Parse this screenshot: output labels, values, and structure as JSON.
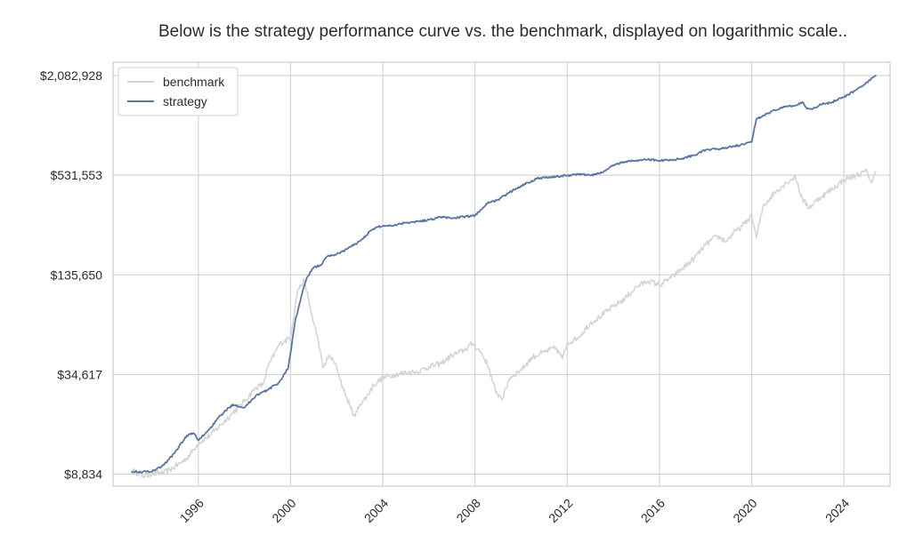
{
  "chart_data": {
    "type": "line",
    "title": "Below is the strategy performance curve vs. the benchmark, displayed on logarithmic scale..",
    "xlabel": "",
    "ylabel": "",
    "yscale": "log",
    "xlim": [
      1992.3,
      2026.0
    ],
    "ylim": [
      7500,
      2500000
    ],
    "grid": true,
    "legend_position": "top-left",
    "x_ticks": [
      1996,
      2000,
      2004,
      2008,
      2012,
      2016,
      2020,
      2024
    ],
    "x_tick_labels": [
      "1996",
      "2000",
      "2004",
      "2008",
      "2012",
      "2016",
      "2020",
      "2024"
    ],
    "y_ticks": [
      8834,
      34617,
      135650,
      531553,
      2082928
    ],
    "y_tick_labels": [
      "$8,834",
      "$34,617",
      "$135,650",
      "$531,553",
      "$2,082,928"
    ],
    "series": [
      {
        "name": "benchmark",
        "color": "#d3d3d3",
        "x": [
          1993.1,
          1993.3,
          1993.6,
          1994.0,
          1994.5,
          1995.0,
          1995.5,
          1996.0,
          1996.5,
          1997.0,
          1997.5,
          1998.0,
          1998.5,
          1998.8,
          1999.0,
          1999.5,
          2000.0,
          2000.3,
          2000.6,
          2000.9,
          2001.2,
          2001.4,
          2001.7,
          2002.0,
          2002.3,
          2002.6,
          2002.8,
          2003.0,
          2003.3,
          2003.6,
          2004.0,
          2004.5,
          2005.0,
          2005.5,
          2006.0,
          2006.5,
          2007.0,
          2007.5,
          2007.9,
          2008.3,
          2008.6,
          2008.9,
          2009.2,
          2009.5,
          2010.0,
          2010.5,
          2011.0,
          2011.5,
          2011.8,
          2012.0,
          2012.5,
          2013.0,
          2013.5,
          2014.0,
          2014.5,
          2015.0,
          2015.5,
          2016.0,
          2016.5,
          2017.0,
          2017.5,
          2018.0,
          2018.5,
          2018.9,
          2019.2,
          2019.6,
          2020.0,
          2020.2,
          2020.5,
          2021.0,
          2021.5,
          2021.9,
          2022.2,
          2022.5,
          2022.8,
          2023.0,
          2023.5,
          2024.0,
          2024.5,
          2025.0,
          2025.2,
          2025.4
        ],
        "values": [
          9200,
          9100,
          8600,
          8900,
          9000,
          9800,
          11000,
          13500,
          15000,
          17500,
          20500,
          24000,
          29000,
          30000,
          38000,
          52000,
          58000,
          110000,
          125000,
          80000,
          55000,
          38000,
          45000,
          38000,
          28000,
          22000,
          19500,
          23000,
          25500,
          30000,
          33000,
          34617,
          35500,
          36000,
          38500,
          40000,
          45000,
          48000,
          53000,
          46000,
          38000,
          27000,
          25000,
          33000,
          37000,
          44000,
          47000,
          50000,
          43000,
          53000,
          58000,
          70000,
          78000,
          88000,
          98000,
          115000,
          125000,
          118000,
          130000,
          148000,
          170000,
          205000,
          230000,
          215000,
          240000,
          265000,
          305000,
          225000,
          350000,
          420000,
          480000,
          520000,
          380000,
          340000,
          375000,
          395000,
          440000,
          500000,
          530000,
          560000,
          480000,
          560000
        ]
      },
      {
        "name": "strategy",
        "color": "#5875a4",
        "x": [
          1993.1,
          1993.5,
          1994.0,
          1994.5,
          1995.0,
          1995.5,
          1995.8,
          1996.0,
          1996.5,
          1997.0,
          1997.5,
          1998.0,
          1998.5,
          1999.0,
          1999.5,
          1999.9,
          2000.2,
          2000.5,
          2000.7,
          2001.0,
          2001.3,
          2001.6,
          2002.0,
          2002.5,
          2003.0,
          2003.5,
          2003.8,
          2004.0,
          2004.5,
          2005.0,
          2005.5,
          2006.0,
          2006.5,
          2007.0,
          2007.5,
          2008.0,
          2008.5,
          2009.0,
          2009.5,
          2010.0,
          2010.3,
          2010.7,
          2011.0,
          2011.5,
          2012.0,
          2012.5,
          2013.0,
          2013.5,
          2014.0,
          2014.5,
          2015.0,
          2015.5,
          2016.0,
          2016.5,
          2017.0,
          2017.5,
          2018.0,
          2018.5,
          2019.0,
          2019.5,
          2020.0,
          2020.2,
          2020.5,
          2020.8,
          2021.0,
          2021.5,
          2021.9,
          2022.2,
          2022.4,
          2022.6,
          2023.0,
          2023.5,
          2024.0,
          2024.5,
          2025.0,
          2025.4
        ],
        "values": [
          9200,
          9100,
          9200,
          10000,
          12000,
          15000,
          15500,
          14000,
          16500,
          20000,
          23000,
          22000,
          26000,
          28000,
          31000,
          38000,
          72000,
          105000,
          130000,
          150000,
          155000,
          175000,
          180000,
          195000,
          215000,
          250000,
          262000,
          265000,
          268000,
          278000,
          282000,
          288000,
          300000,
          295000,
          300000,
          305000,
          360000,
          380000,
          420000,
          460000,
          480000,
          510000,
          515000,
          520000,
          530000,
          540000,
          530000,
          550000,
          610000,
          640000,
          650000,
          660000,
          650000,
          655000,
          670000,
          700000,
          750000,
          760000,
          780000,
          800000,
          840000,
          1150000,
          1200000,
          1250000,
          1300000,
          1360000,
          1380000,
          1450000,
          1320000,
          1320000,
          1400000,
          1450000,
          1550000,
          1700000,
          1900000,
          2082928
        ]
      }
    ]
  }
}
